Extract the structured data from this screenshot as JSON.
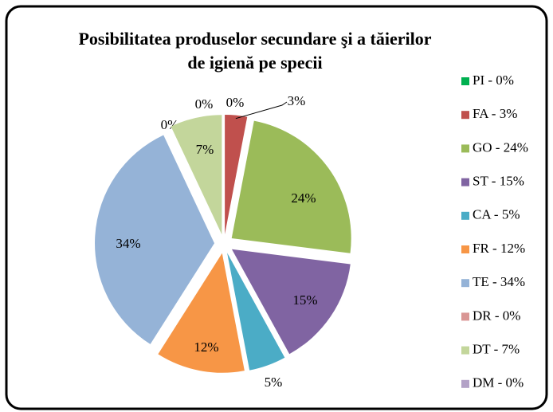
{
  "chart_data": {
    "type": "pie",
    "title": "Posibilitatea produselor secundare şi a tăierilor de igienă pe specii",
    "categories": [
      "PI - 0%",
      "FA - 3%",
      "GO - 24%",
      "ST - 15%",
      "CA - 5%",
      "FR - 12%",
      "TE - 34%",
      "DR - 0%",
      "DT - 7%",
      "DM - 0%"
    ],
    "values": [
      0,
      3,
      24,
      15,
      5,
      12,
      34,
      0,
      7,
      0
    ],
    "value_labels": [
      "0%",
      "3%",
      "24%",
      "15%",
      "5%",
      "12%",
      "34%",
      "0%",
      "7%",
      "0%"
    ],
    "colors": [
      "#00b050",
      "#c0504d",
      "#9bbb59",
      "#8064a2",
      "#4bacc6",
      "#f79646",
      "#95b3d7",
      "#d99694",
      "#c3d69b",
      "#b3a2c7"
    ],
    "legend": "right"
  }
}
